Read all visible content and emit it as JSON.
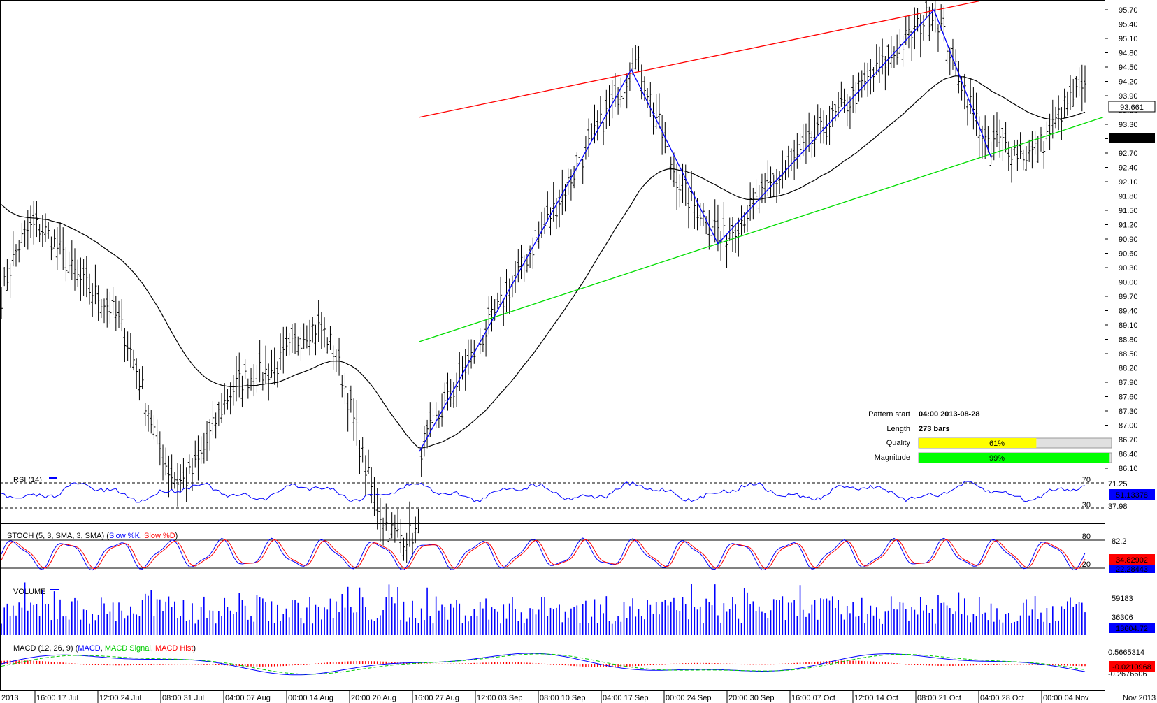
{
  "price_axis": [
    "95.70",
    "95.40",
    "95.10",
    "94.80",
    "94.50",
    "94.20",
    "93.90",
    "93.60",
    "93.30",
    "93.00",
    "92.70",
    "92.40",
    "92.10",
    "91.80",
    "91.50",
    "91.20",
    "90.90",
    "90.60",
    "90.30",
    "90.00",
    "89.70",
    "89.40",
    "89.10",
    "88.80",
    "88.50",
    "88.20",
    "87.90",
    "87.60",
    "87.30",
    "87.00",
    "86.70",
    "86.40",
    "86.10"
  ],
  "time_axis": [
    "2013",
    "16:00 17 Jul",
    "12:00 24 Jul",
    "08:00 31 Jul",
    "04:00 07 Aug",
    "00:00 14 Aug",
    "20:00 20 Aug",
    "16:00 27 Aug",
    "12:00 03 Sep",
    "08:00 10 Sep",
    "04:00 17 Sep",
    "00:00 24 Sep",
    "20:00 30 Sep",
    "16:00 07 Oct",
    "12:00 14 Oct",
    "08:00 21 Oct",
    "04:00 28 Oct",
    "00:00 04 Nov",
    "Nov 2013"
  ],
  "badges": {
    "price_last": "93.661",
    "ma_last": "93.013",
    "rsi_last": "51.13378",
    "stoch_k": "34.82902",
    "stoch_d": "22.28443",
    "volume_last": "13604.72",
    "macd_last": "-0.0210968"
  },
  "info": {
    "pattern_start_label": "Pattern start",
    "pattern_start_value": "04:00 2013-08-28",
    "length_label": "Length",
    "length_value": "273 bars",
    "quality_label": "Quality",
    "quality_value": "61%",
    "quality_fraction": 0.61,
    "magnitude_label": "Magnitude",
    "magnitude_value": "99%",
    "magnitude_fraction": 0.99
  },
  "panels": {
    "rsi": {
      "title": "RSI (14)",
      "levels": [
        "70",
        "30"
      ],
      "axis": [
        "71.25",
        "37.98"
      ]
    },
    "stoch": {
      "title_prefix": "STOCH (5, 3, SMA, 3, SMA) (",
      "k_label": "Slow %K",
      "sep": ", ",
      "d_label": "Slow %D",
      "title_suffix": ")",
      "levels": [
        "80",
        "20"
      ],
      "axis": [
        "82.2"
      ]
    },
    "volume": {
      "title": "VOLUME",
      "axis": [
        "59183",
        "36306"
      ]
    },
    "macd": {
      "title_prefix": "MACD (12, 26, 9) (",
      "macd_label": "MACD",
      "sep1": ", ",
      "signal_label": "MACD Signal",
      "sep2": ", ",
      "hist_label": "MACD Hist",
      "title_suffix": ")",
      "axis": [
        "0.5665314",
        "-0.2676606"
      ]
    }
  },
  "colors": {
    "up_bar": "#000000",
    "ma": "#000000",
    "resistance": "#ff0000",
    "support": "#00dd00",
    "zigzag": "#0000ff",
    "badge_blue": "#0000ff",
    "badge_black": "#000000",
    "macd_hist": "#ff0000",
    "macd_signal": "#00cc00",
    "quality": "#ffff00",
    "magnitude": "#00ff00"
  },
  "chart_data": {
    "type": "ohlc",
    "pattern": "zigzag with resistance (red) and support (green) trend lines",
    "price_range": [
      86.1,
      95.7
    ],
    "key_points": [
      {
        "label": "start",
        "price": 89.9
      },
      {
        "label": "low",
        "price": 86.45
      },
      {
        "label": "peak",
        "price": 94.45
      },
      {
        "label": "trough",
        "price": 90.8
      },
      {
        "label": "high",
        "price": 95.7
      },
      {
        "label": "trough",
        "price": 92.6
      },
      {
        "label": "last",
        "price": 93.661
      }
    ],
    "moving_average_last": 93.013,
    "indicators": [
      "RSI (14)",
      "STOCH (5, 3, SMA, 3, SMA)",
      "VOLUME",
      "MACD (12, 26, 9)"
    ]
  }
}
